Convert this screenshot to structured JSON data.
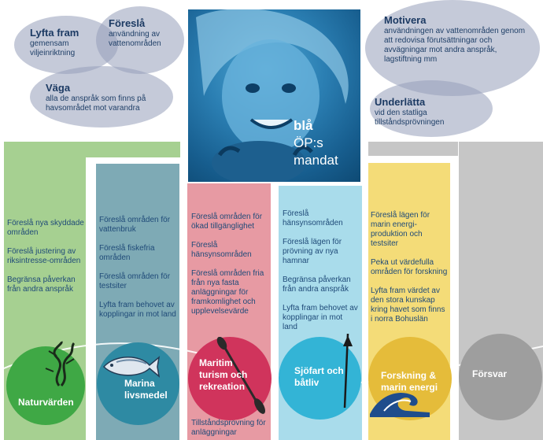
{
  "ellipses": {
    "lyfta": {
      "title": "Lyfta fram",
      "text": "gemensam viljeinriktning"
    },
    "foresla": {
      "title": "Föreslå",
      "text": "användning av vattenområden"
    },
    "vaga": {
      "title": "Väga",
      "text": "alla de anspråk som finns på havsområdet mot varandra"
    },
    "motivera": {
      "title": "Motivera",
      "text": "användningen av vattenområden genom att redovisa förutsättningar och avvägningar mot andra anspråk, lagstiftning mm"
    },
    "underlatta": {
      "title": "Underlätta",
      "text": "vid den statliga tillståndsprövningen"
    }
  },
  "photo": {
    "line1": "blå",
    "line2": "ÖP:s",
    "line3": "mandat"
  },
  "columns": [
    {
      "label": "Naturvärden",
      "color": "#a6d091",
      "circle_color": "#3fa845",
      "items": [
        "Föreslå nya skyddade områden",
        "Föreslå justering av riksintresse-områden",
        "Begränsa påverkan från andra anspråk"
      ]
    },
    {
      "label": "Marina livsmedel",
      "color": "#7eaab5",
      "circle_color": "#2e8aa3",
      "items": [
        "Föreslå områden för vattenbruk",
        "Föreslå fiskefria områden",
        "Föreslå områden för testsiter",
        "Lyfta fram behovet av kopplingar in mot land"
      ]
    },
    {
      "label": "Maritim turism och rekreation",
      "color": "#e79aa3",
      "circle_color": "#d0345c",
      "items": [
        "Föreslå områden för ökad tillgänglighet",
        "Föreslå hänsynsområden",
        "Föreslå områden fria från nya fasta anläggningar för framkomlighet och upplevelsevärde",
        "Tillståndsprövning för anläggningar"
      ]
    },
    {
      "label": "Sjöfart och båtliv",
      "color": "#a9dceb",
      "circle_color": "#33b4d6",
      "items": [
        "Föreslå hänsynsområden",
        "Föreslå lägen för prövning av nya hamnar",
        "Begränsa påverkan från andra anspråk",
        "Lyfta fram behovet av kopplingar in mot land"
      ]
    },
    {
      "label": "Forskning & marin energi",
      "color": "#f4dc78",
      "circle_color": "#e5bc3a",
      "items": [
        "Föreslå lägen för marin energi-produktion och testsiter",
        "Peka ut värdefulla områden för forskning",
        "Lyfta fram värdet av den stora kunskap kring havet som finns i norra Bohuslän"
      ]
    },
    {
      "label": "Försvar",
      "color": "#c6c6c6",
      "circle_color": "#9e9e9e",
      "items": []
    }
  ]
}
